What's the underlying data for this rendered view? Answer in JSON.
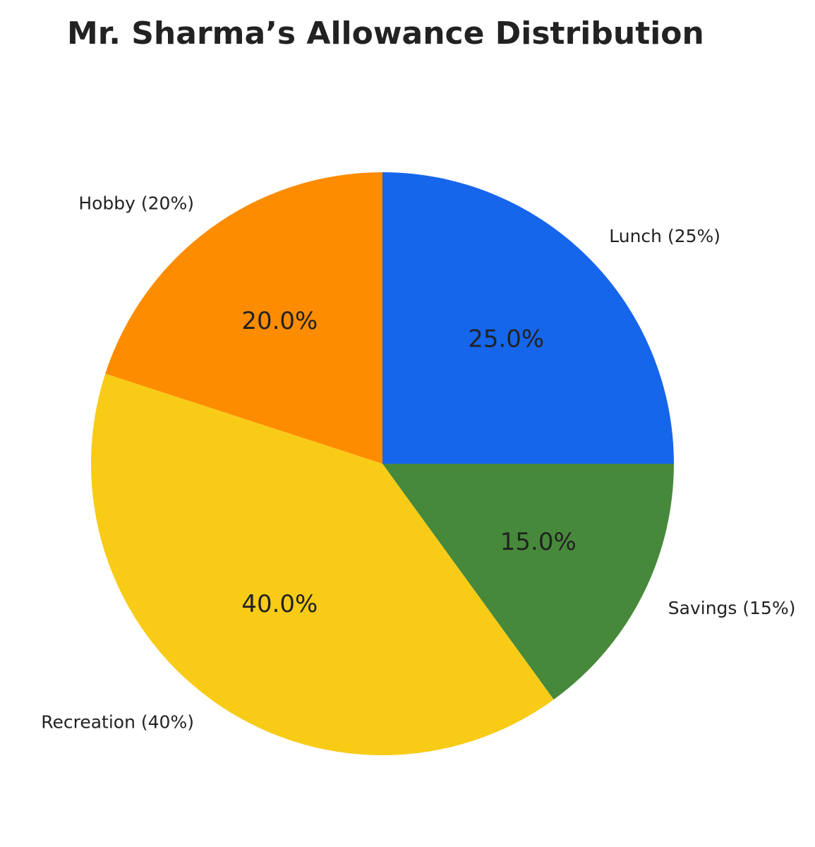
{
  "chart_data": {
    "type": "pie",
    "title": "Mr. Sharma’s Allowance Distribution",
    "categories": [
      "Lunch (25%)",
      "Savings (15%)",
      "Recreation (40%)",
      "Hobby (20%)"
    ],
    "values": [
      25,
      15,
      40,
      20
    ],
    "value_labels": [
      "25.0%",
      "15.0%",
      "40.0%",
      "20.0%"
    ],
    "colors": [
      "#1666eb",
      "#47893a",
      "#f8cb17",
      "#fe8c00"
    ]
  }
}
